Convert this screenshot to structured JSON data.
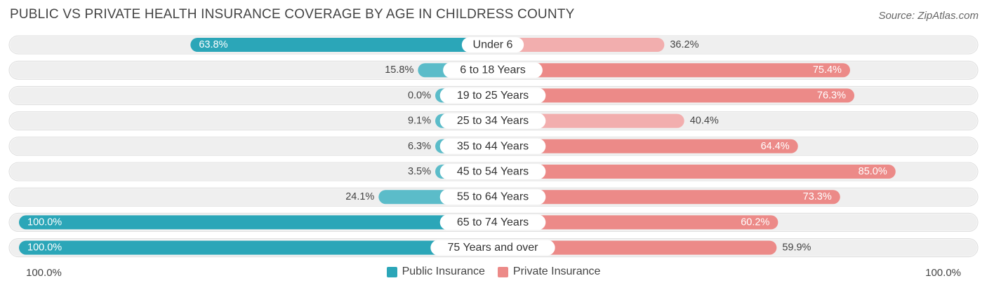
{
  "header": {
    "title": "PUBLIC VS PRIVATE HEALTH INSURANCE COVERAGE BY AGE IN CHILDRESS COUNTY",
    "source": "Source: ZipAtlas.com"
  },
  "axis": {
    "left_label": "100.0%",
    "right_label": "100.0%"
  },
  "legend": {
    "public_label": "Public Insurance",
    "private_label": "Private Insurance"
  },
  "colors": {
    "public": "#5bbcc9",
    "public_strong": "#2ba6b8",
    "private": "#ec8a88",
    "private_light": "#f2aeae",
    "row_bg": "#efefef"
  },
  "chart_data": {
    "type": "bar",
    "orientation": "diverging-horizontal",
    "title": "PUBLIC VS PRIVATE HEALTH INSURANCE COVERAGE BY AGE IN CHILDRESS COUNTY",
    "xlim": [
      0,
      100
    ],
    "categories": [
      "Under 6",
      "6 to 18 Years",
      "19 to 25 Years",
      "25 to 34 Years",
      "35 to 44 Years",
      "45 to 54 Years",
      "55 to 64 Years",
      "65 to 74 Years",
      "75 Years and over"
    ],
    "series": [
      {
        "name": "Public Insurance",
        "values": [
          63.8,
          15.8,
          0.0,
          9.1,
          6.3,
          3.5,
          24.1,
          100.0,
          100.0
        ],
        "labels": [
          "63.8%",
          "15.8%",
          "0.0%",
          "9.1%",
          "6.3%",
          "3.5%",
          "24.1%",
          "100.0%",
          "100.0%"
        ]
      },
      {
        "name": "Private Insurance",
        "values": [
          36.2,
          75.4,
          76.3,
          40.4,
          64.4,
          85.0,
          73.3,
          60.2,
          59.9
        ],
        "labels": [
          "36.2%",
          "75.4%",
          "76.3%",
          "40.4%",
          "64.4%",
          "85.0%",
          "73.3%",
          "60.2%",
          "59.9%"
        ]
      }
    ]
  }
}
